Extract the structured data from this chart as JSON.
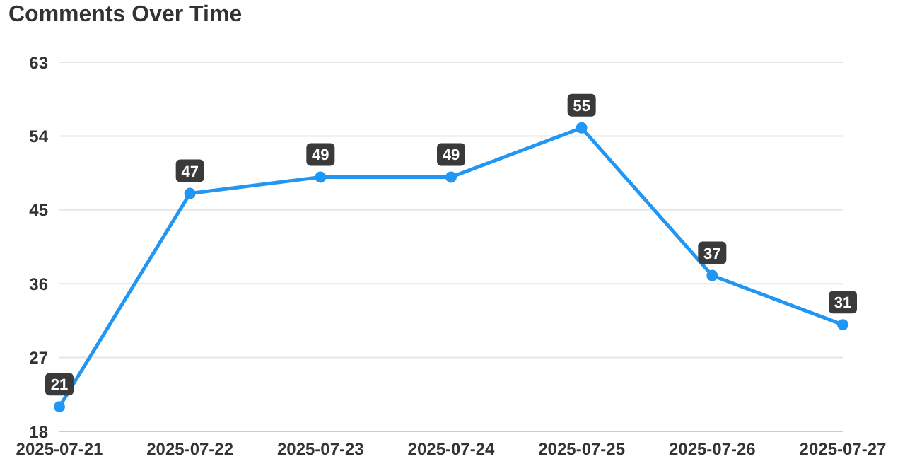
{
  "chart_data": {
    "type": "line",
    "title": "Comments Over Time",
    "categories": [
      "2025-07-21",
      "2025-07-22",
      "2025-07-23",
      "2025-07-24",
      "2025-07-25",
      "2025-07-26",
      "2025-07-27"
    ],
    "series": [
      {
        "color": "#2196f3",
        "values": [
          21,
          47,
          49,
          49,
          55,
          37,
          31
        ]
      }
    ],
    "ylim": [
      18,
      63
    ],
    "yticks": [
      18,
      27,
      36,
      45,
      54,
      63
    ],
    "grid": "y",
    "marker": "circle",
    "line_style": "solid",
    "data_labels": true,
    "legend": false
  }
}
